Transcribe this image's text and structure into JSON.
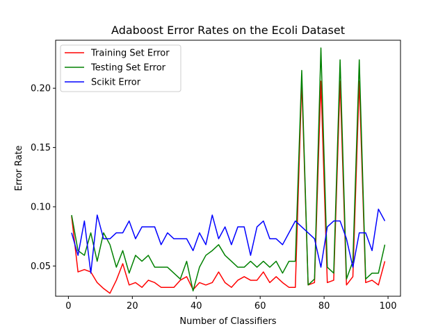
{
  "chart_data": {
    "type": "line",
    "title": "Adaboost Error Rates on the Ecoli Dataset",
    "xlabel": "Number of Classifiers",
    "ylabel": "Error Rate",
    "xlim": [
      -4.0,
      103.9
    ],
    "ylim": [
      0.0245,
      0.2405
    ],
    "xticks": [
      0,
      20,
      40,
      60,
      80,
      100
    ],
    "yticks": [
      0.05,
      0.1,
      0.15,
      0.2
    ],
    "ytick_labels": [
      "0.05",
      "0.10",
      "0.15",
      "0.20"
    ],
    "grid": false,
    "legend_position": "top-left",
    "x": [
      1,
      3,
      5,
      7,
      9,
      11,
      13,
      15,
      17,
      19,
      21,
      23,
      25,
      27,
      29,
      31,
      33,
      35,
      37,
      39,
      41,
      43,
      45,
      47,
      49,
      51,
      53,
      55,
      57,
      59,
      61,
      63,
      65,
      67,
      69,
      71,
      73,
      75,
      77,
      79,
      81,
      83,
      85,
      87,
      89,
      91,
      93,
      95,
      97,
      99
    ],
    "series": [
      {
        "name": "Training Set Error",
        "color": "#ff0000",
        "values": [
          0.092,
          0.045,
          0.047,
          0.045,
          0.036,
          0.031,
          0.027,
          0.038,
          0.052,
          0.034,
          0.036,
          0.032,
          0.038,
          0.036,
          0.032,
          0.032,
          0.032,
          0.038,
          0.041,
          0.03,
          0.036,
          0.034,
          0.036,
          0.045,
          0.036,
          0.032,
          0.038,
          0.041,
          0.038,
          0.038,
          0.045,
          0.036,
          0.041,
          0.036,
          0.032,
          0.032,
          0.206,
          0.034,
          0.036,
          0.206,
          0.036,
          0.038,
          0.206,
          0.034,
          0.041,
          0.206,
          0.036,
          0.038,
          0.034,
          0.054
        ]
      },
      {
        "name": "Testing Set Error",
        "color": "#008000",
        "values": [
          0.093,
          0.063,
          0.059,
          0.078,
          0.054,
          0.078,
          0.068,
          0.049,
          0.063,
          0.044,
          0.059,
          0.054,
          0.059,
          0.049,
          0.049,
          0.049,
          0.044,
          0.039,
          0.054,
          0.029,
          0.049,
          0.059,
          0.063,
          0.068,
          0.059,
          0.054,
          0.049,
          0.049,
          0.054,
          0.049,
          0.054,
          0.049,
          0.054,
          0.044,
          0.054,
          0.054,
          0.215,
          0.034,
          0.039,
          0.234,
          0.049,
          0.044,
          0.224,
          0.039,
          0.054,
          0.224,
          0.039,
          0.044,
          0.044,
          0.068
        ]
      },
      {
        "name": "Scikit Error",
        "color": "#0000ff",
        "values": [
          0.078,
          0.059,
          0.088,
          0.044,
          0.093,
          0.073,
          0.073,
          0.078,
          0.078,
          0.088,
          0.073,
          0.083,
          0.083,
          0.083,
          0.068,
          0.078,
          0.073,
          0.073,
          0.073,
          0.063,
          0.078,
          0.068,
          0.093,
          0.073,
          0.083,
          0.068,
          0.083,
          0.083,
          0.059,
          0.083,
          0.088,
          0.073,
          0.073,
          0.068,
          0.078,
          0.088,
          0.083,
          0.078,
          0.073,
          0.049,
          0.083,
          0.088,
          0.088,
          0.073,
          0.049,
          0.078,
          0.078,
          0.063,
          0.098,
          0.088
        ]
      }
    ]
  }
}
